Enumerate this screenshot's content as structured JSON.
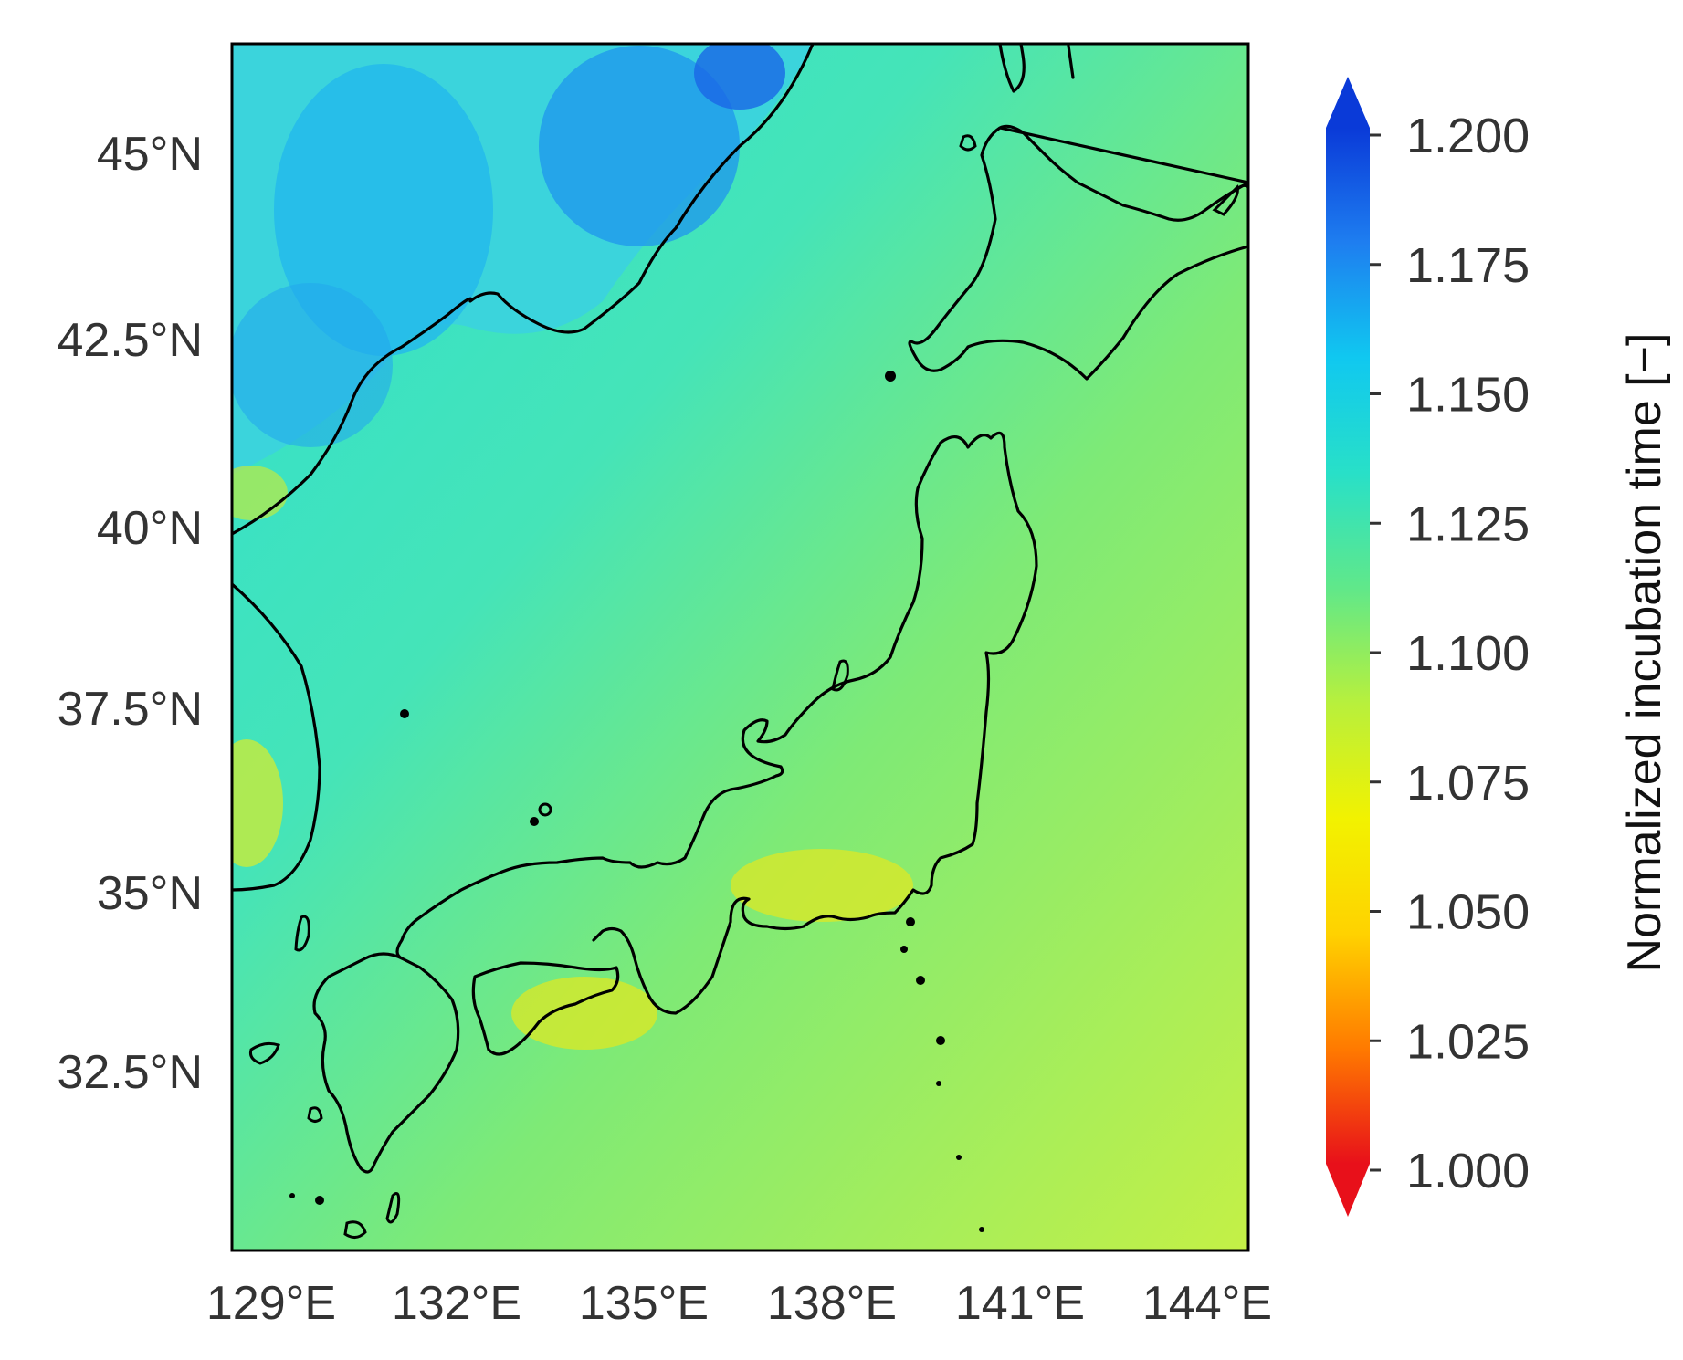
{
  "map": {
    "lon_ticks": [
      "129°E",
      "132°E",
      "135°E",
      "138°E",
      "141°E",
      "144°E"
    ],
    "lat_ticks": [
      "45°N",
      "42.5°N",
      "40°N",
      "37.5°N",
      "35°N",
      "32.5°N"
    ],
    "lon_range": [
      129,
      145
    ],
    "lat_range": [
      30.3,
      46.2
    ]
  },
  "colorbar": {
    "title": "Normalized incubation time [−]",
    "tick_labels": [
      "1.200",
      "1.175",
      "1.150",
      "1.125",
      "1.100",
      "1.075",
      "1.050",
      "1.025",
      "1.000"
    ],
    "range": [
      1.0,
      1.2
    ],
    "extend": "both",
    "colors": [
      "#e8101a",
      "#ff7a00",
      "#ffd200",
      "#f2f200",
      "#b8f03c",
      "#60e88a",
      "#28e0c8",
      "#10c8f0",
      "#1e7ef0",
      "#0a3ad8"
    ]
  },
  "field": {
    "sea_color": "#b2ee4a",
    "japan_sea_color": "#4fe6ac",
    "north_sea_color": "#2de0d2",
    "south_sea_color": "#c8f03e"
  }
}
